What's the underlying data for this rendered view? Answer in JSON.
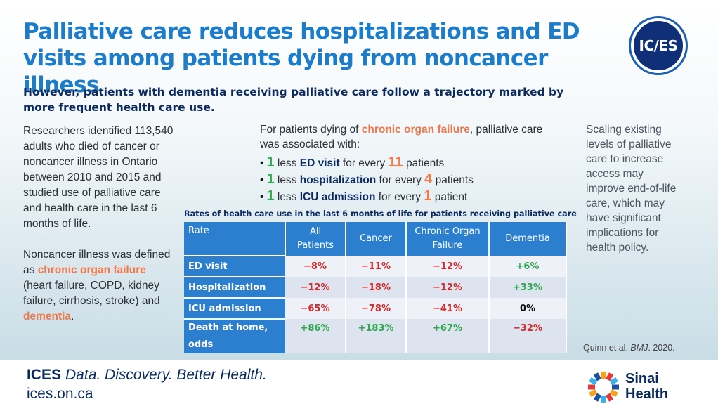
{
  "headline": "Palliative care reduces hospitalizations and ED visits among patients dying from noncancer illness",
  "logo_text": "IC/ES",
  "subhead": "However, patients with dementia receiving palliative care follow a trajectory marked by more frequent health care use.",
  "left_col": {
    "p1": "Researchers identified 113,540 adults who died of cancer or noncancer illness in Ontario between 2010 and 2015 and studied use of palliative care and health care in the last 6 months of life.",
    "p2_a": "Noncancer illness was defined as ",
    "p2_hl1": "chronic organ failure",
    "p2_b": " (heart failure, COPD, kidney failure, cirrhosis, stroke) and ",
    "p2_hl2": "dementia",
    "p2_c": "."
  },
  "mid": {
    "intro_a": "For patients dying of ",
    "intro_hl": "chronic organ failure",
    "intro_b": ", palliative care was associated with:",
    "items": [
      {
        "bullet": "•",
        "n1": "1",
        "a": " less ",
        "b": "ED visit",
        "c": " for every ",
        "n2": "11",
        "d": " patients"
      },
      {
        "bullet": "•",
        "n1": "1",
        "a": " less ",
        "b": "hospitalization",
        "c": " for every ",
        "n2": "4",
        "d": " patients"
      },
      {
        "bullet": "•",
        "n1": "1",
        "a": " less ",
        "b": "ICU admission",
        "c": " for every ",
        "n2": "1",
        "d": " patient"
      }
    ]
  },
  "right_col": "Scaling existing levels of palliative care to increase access may improve end-of-life care, which may have significant implications for health policy.",
  "table": {
    "title": "Rates of health care use in the last 6 months of life for patients receiving palliative care",
    "headers": [
      "Rate",
      "All Patients",
      "Cancer",
      "Chronic Organ Failure",
      "Dementia"
    ],
    "rows": [
      {
        "label": "ED visit",
        "values": [
          "−8%",
          "−11%",
          "−12%",
          "+6%"
        ]
      },
      {
        "label": "Hospitalization",
        "values": [
          "−12%",
          "−18%",
          "−12%",
          "+33%"
        ]
      },
      {
        "label": "ICU admission",
        "values": [
          "−65%",
          "−78%",
          "−41%",
          "0%"
        ]
      },
      {
        "label": "Death at home, odds",
        "values": [
          "+86%",
          "+183%",
          "+67%",
          "−32%"
        ]
      }
    ]
  },
  "citation": {
    "a": "Quinn et al. ",
    "journal": "BMJ",
    "b": ". 2020."
  },
  "footer": {
    "brand": "ICES",
    "tagline": "Data. Discovery. Better Health.",
    "site": "ices.on.ca",
    "partner_line1": "Sinai",
    "partner_line2": "Health"
  },
  "colors": {
    "headline": "#1d7cc9",
    "highlight": "#f0784b",
    "positive": "#2fa84f",
    "negative": "#d42a2a",
    "table_header": "#2c7fce",
    "navy": "#0b2a5e"
  }
}
